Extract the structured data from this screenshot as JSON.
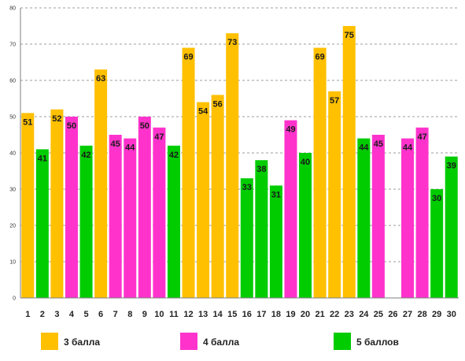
{
  "chart_data": {
    "type": "bar",
    "categories": [
      "1",
      "2",
      "3",
      "4",
      "5",
      "6",
      "7",
      "8",
      "9",
      "10",
      "11",
      "12",
      "13",
      "14",
      "15",
      "16",
      "17",
      "18",
      "19",
      "20",
      "21",
      "22",
      "23",
      "24",
      "25",
      "26",
      "27",
      "28",
      "29",
      "30"
    ],
    "values": [
      51,
      41,
      52,
      50,
      42,
      63,
      45,
      44,
      50,
      47,
      42,
      69,
      54,
      56,
      73,
      33,
      38,
      31,
      49,
      40,
      69,
      57,
      75,
      44,
      45,
      null,
      44,
      47,
      30,
      39
    ],
    "groups": [
      0,
      2,
      0,
      1,
      2,
      0,
      1,
      1,
      1,
      1,
      2,
      0,
      0,
      0,
      0,
      2,
      2,
      2,
      1,
      2,
      0,
      0,
      0,
      2,
      1,
      null,
      1,
      1,
      2,
      2
    ],
    "legend": [
      {
        "label": "3 балла",
        "color": "#FFC000"
      },
      {
        "label": "4 балла",
        "color": "#FF33CC"
      },
      {
        "label": "5 баллов",
        "color": "#00CC00"
      }
    ],
    "yticks": [
      "0",
      "10",
      "20",
      "30",
      "40",
      "50",
      "60",
      "70",
      "80"
    ],
    "ylim": [
      0,
      80
    ],
    "grid": true,
    "legend_position": "bottom"
  }
}
